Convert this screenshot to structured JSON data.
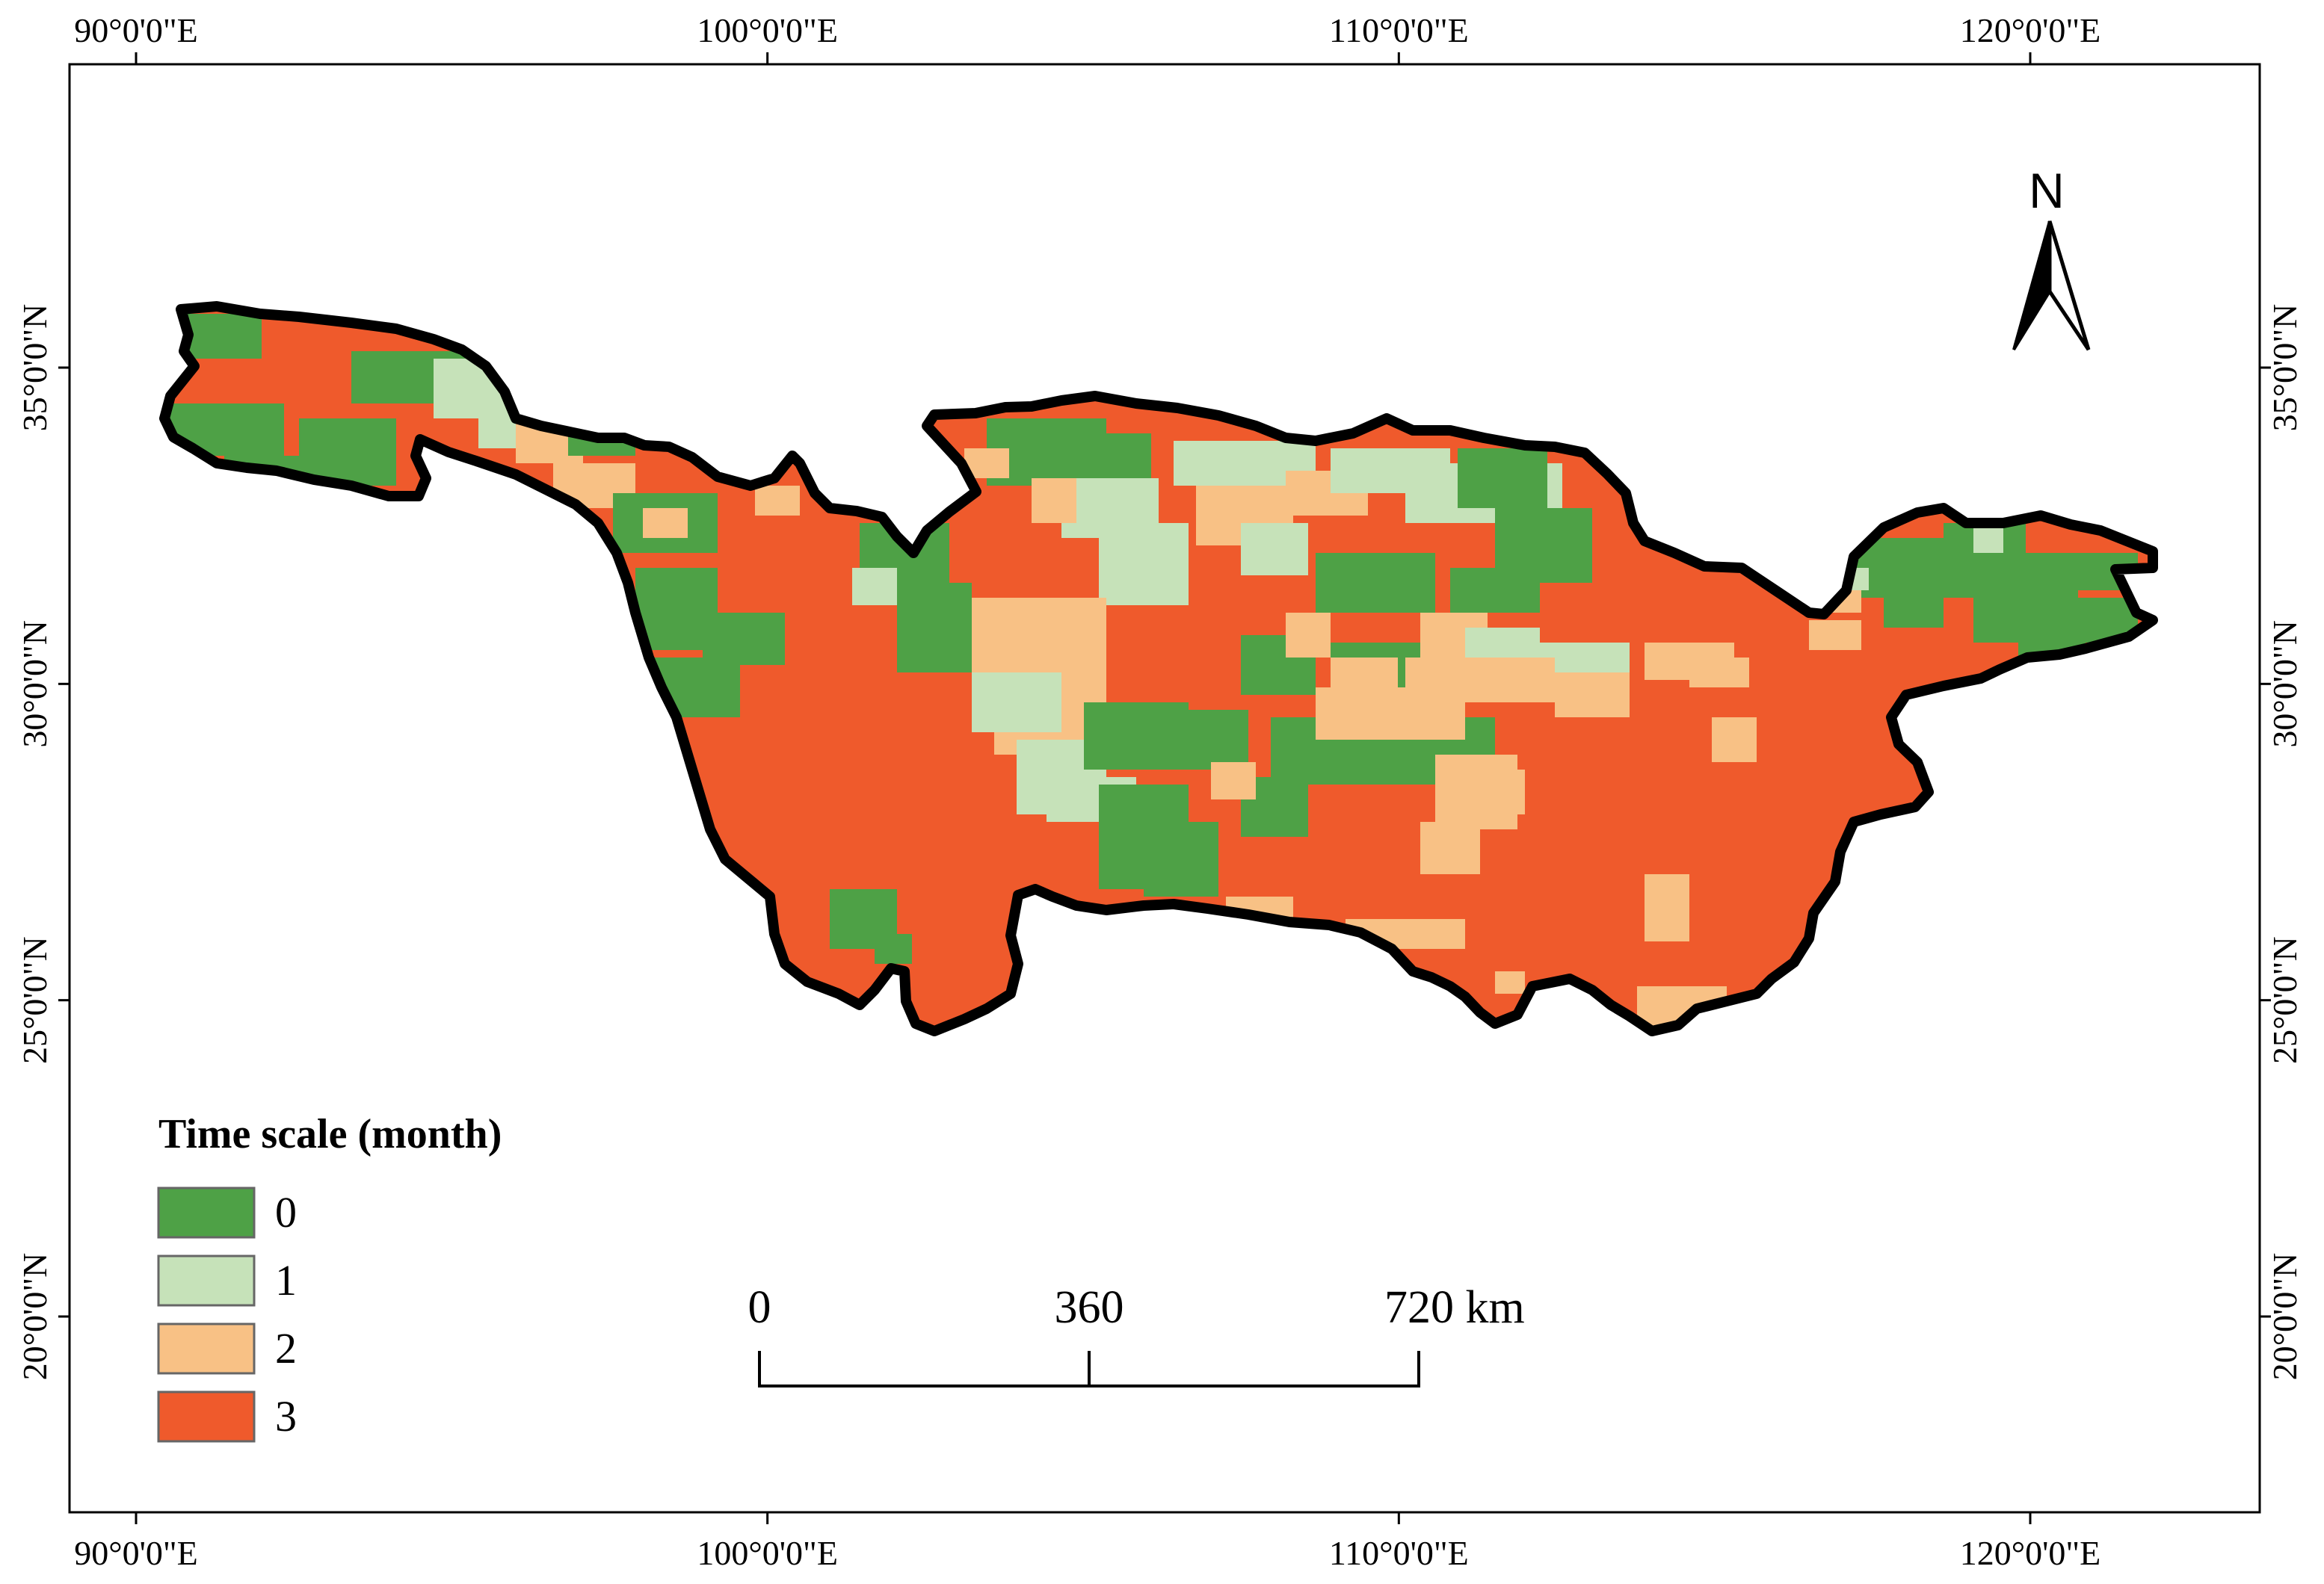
{
  "map": {
    "longitude_ticks": [
      {
        "value": 90,
        "label": "90°0'0\"E"
      },
      {
        "value": 100,
        "label": "100°0'0\"E"
      },
      {
        "value": 110,
        "label": "110°0'0\"E"
      },
      {
        "value": 120,
        "label": "120°0'0\"E"
      }
    ],
    "latitude_ticks": [
      {
        "value": 35,
        "label": "35°0'0\"N"
      },
      {
        "value": 30,
        "label": "30°0'0\"N"
      },
      {
        "value": 25,
        "label": "25°0'0\"N"
      },
      {
        "value": 20,
        "label": "20°0'0\"N"
      }
    ],
    "extent": {
      "lon_min": 89,
      "lon_max": 123.6,
      "lat_min": 17.1,
      "lat_max": 40.1
    },
    "north_arrow": {
      "label": "N"
    },
    "legend": {
      "title": "Time scale (month)",
      "classes": [
        {
          "label": "0",
          "color": "#4ea146"
        },
        {
          "label": "1",
          "color": "#c6e2b9"
        },
        {
          "label": "2",
          "color": "#f8c185"
        },
        {
          "label": "3",
          "color": "#ef5a2c"
        }
      ]
    },
    "scale_bar": {
      "labels": [
        "0",
        "360",
        "720 km"
      ],
      "distances_km": [
        0,
        360,
        720
      ]
    },
    "basin_outline_color": "#000000"
  }
}
